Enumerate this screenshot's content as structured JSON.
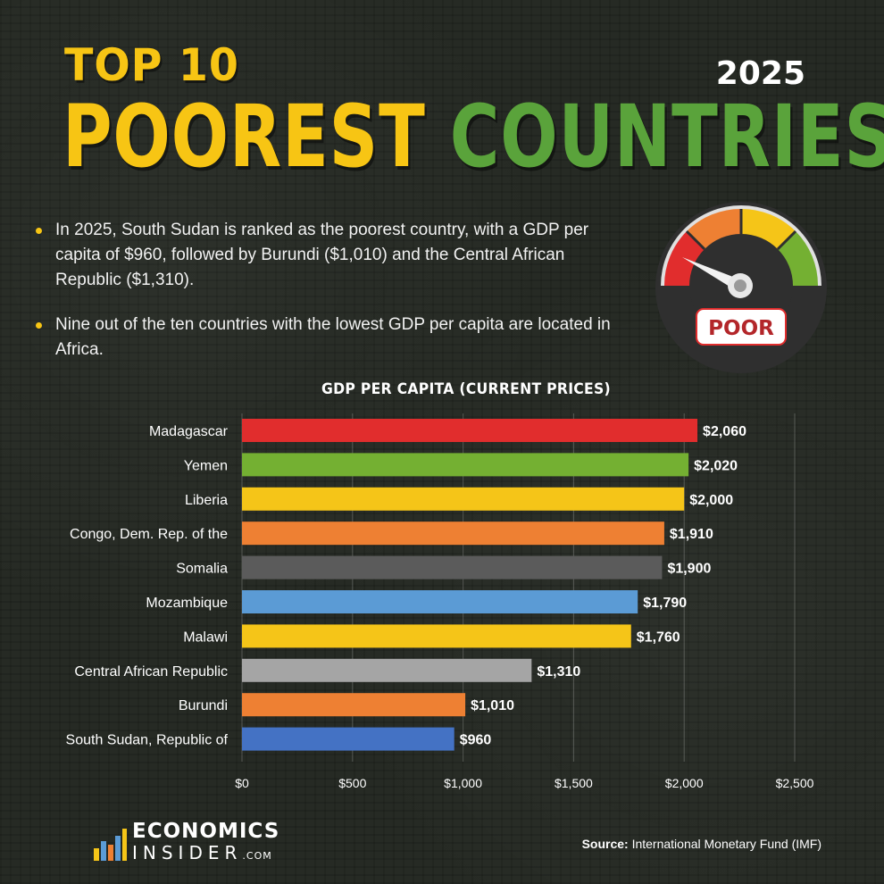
{
  "header": {
    "top_line": "TOP 10",
    "word1": "POOREST",
    "word2": "COUNTRIES",
    "year": "2025"
  },
  "bullets": [
    "In 2025, South Sudan is ranked as the poorest country, with a GDP per capita of $960, followed by Burundi ($1,010) and the Central African Republic ($1,310).",
    "Nine out of the ten countries with the lowest GDP per capita are located in Africa."
  ],
  "gauge": {
    "label": "POOR",
    "icon": "speedometer-gauge-icon"
  },
  "colors": {
    "yellow": "#f7c514",
    "green": "#5aa33b",
    "background": "#262a24"
  },
  "chart_data": {
    "type": "bar",
    "orientation": "horizontal",
    "title": "GDP PER CAPITA (CURRENT PRICES)",
    "categories": [
      "Madagascar",
      "Yemen",
      "Liberia",
      "Congo, Dem. Rep. of the",
      "Somalia",
      "Mozambique",
      "Malawi",
      "Central African Republic",
      "Burundi",
      "South Sudan, Republic of"
    ],
    "values": [
      2060,
      2020,
      2000,
      1910,
      1900,
      1790,
      1760,
      1310,
      1010,
      960
    ],
    "value_labels": [
      "$2,060",
      "$2,020",
      "$2,000",
      "$1,910",
      "$1,900",
      "$1,790",
      "$1,760",
      "$1,310",
      "$1,010",
      "$960"
    ],
    "bar_colors": [
      "#e12d2d",
      "#74b032",
      "#f5c518",
      "#ee8033",
      "#5b5b5b",
      "#5b9bd5",
      "#f5c518",
      "#a5a5a5",
      "#ee8033",
      "#4472c4"
    ],
    "xlim": [
      0,
      2500
    ],
    "xticks": [
      0,
      500,
      1000,
      1500,
      2000,
      2500
    ],
    "xtick_labels": [
      "$0",
      "$500",
      "$1,000",
      "$1,500",
      "$2,000",
      "$2,500"
    ],
    "grid": true
  },
  "footer": {
    "logo_line1": "ECONOMICS",
    "logo_line2": "INSIDER",
    "logo_suffix": ".COM",
    "source_label": "Source:",
    "source_text": "International Monetary Fund (IMF)"
  }
}
